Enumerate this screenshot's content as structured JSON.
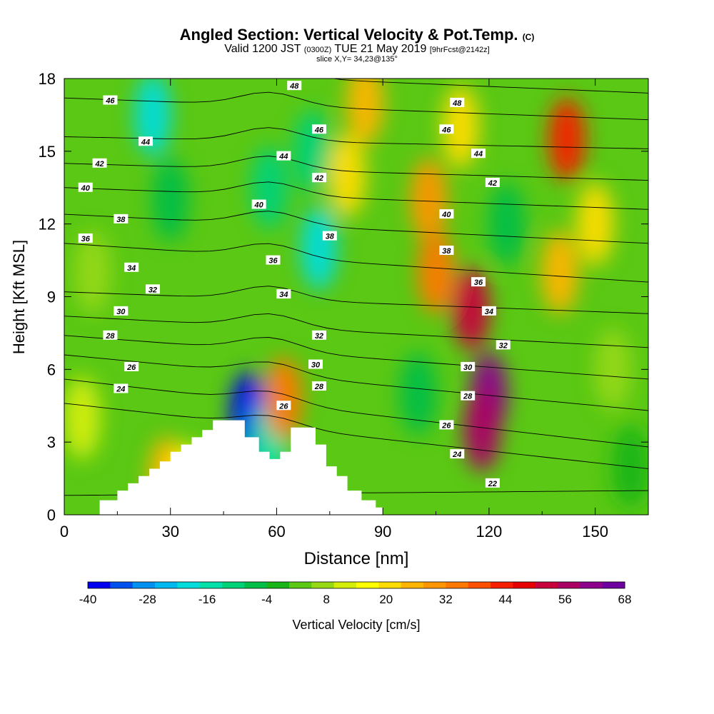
{
  "chart_data": {
    "type": "heatmap",
    "title": "Angled Section: Vertical Velocity & Pot.Temp.",
    "title_mark": "(C)",
    "subtitle_parts": [
      "Valid 1200 JST ",
      "(0300Z)",
      " TUE 21 May 2019 ",
      "[9hrFcst@2142z]"
    ],
    "slice_text": "slice X,Y= 34,23@135°",
    "xlabel": "Distance [nm]",
    "ylabel": "Height [Kft MSL]",
    "xlim": [
      0,
      165
    ],
    "ylim": [
      0,
      18
    ],
    "xticks": [
      "0",
      "30",
      "60",
      "90",
      "120",
      "150"
    ],
    "yticks": [
      "0",
      "3",
      "6",
      "9",
      "12",
      "15",
      "18"
    ],
    "colorbar": {
      "label": "Vertical Velocity [cm/s]",
      "ticks": [
        "-40",
        "-28",
        "-16",
        "-4",
        "8",
        "20",
        "32",
        "44",
        "56",
        "68"
      ],
      "min": -40,
      "max": 68,
      "colors": [
        "#0000f0",
        "#0050f0",
        "#0090f0",
        "#00b8f0",
        "#00dcdc",
        "#00e0a8",
        "#00d278",
        "#00be46",
        "#18b418",
        "#5ac814",
        "#96d814",
        "#d4ee0a",
        "#ffff00",
        "#ffdc00",
        "#ffb400",
        "#ff9600",
        "#ff7800",
        "#ff5000",
        "#f51e00",
        "#e60000",
        "#c8003c",
        "#aa0064",
        "#8c008c",
        "#6e00a0"
      ]
    },
    "velocity_features": [
      {
        "x": 29,
        "z": 1.5,
        "value": 26
      },
      {
        "x": 35,
        "z": 1.2,
        "value": 18
      },
      {
        "x": 52,
        "z": 4.2,
        "value": -38
      },
      {
        "x": 58,
        "z": 3.0,
        "value": -16
      },
      {
        "x": 62,
        "z": 4.8,
        "value": 36
      },
      {
        "x": 25,
        "z": 16.5,
        "value": -20
      },
      {
        "x": 30,
        "z": 13.0,
        "value": -8
      },
      {
        "x": 72,
        "z": 11.0,
        "value": -20
      },
      {
        "x": 70,
        "z": 15.0,
        "value": -12
      },
      {
        "x": 58,
        "z": 13.5,
        "value": -10
      },
      {
        "x": 80,
        "z": 14.0,
        "value": 20
      },
      {
        "x": 85,
        "z": 17.0,
        "value": 24
      },
      {
        "x": 103,
        "z": 13.0,
        "value": 28
      },
      {
        "x": 105,
        "z": 10.0,
        "value": 36
      },
      {
        "x": 115,
        "z": 8.5,
        "value": 52
      },
      {
        "x": 120,
        "z": 5.0,
        "value": 62
      },
      {
        "x": 118,
        "z": 3.5,
        "value": 56
      },
      {
        "x": 112,
        "z": 16.0,
        "value": 22
      },
      {
        "x": 125,
        "z": 12.0,
        "value": -8
      },
      {
        "x": 142,
        "z": 15.5,
        "value": 44
      },
      {
        "x": 140,
        "z": 10.0,
        "value": 24
      },
      {
        "x": 150,
        "z": 12.0,
        "value": 20
      },
      {
        "x": 155,
        "z": 6.0,
        "value": 8
      },
      {
        "x": 160,
        "z": 2.0,
        "value": -4
      },
      {
        "x": 100,
        "z": 5.0,
        "value": -8
      },
      {
        "x": 5,
        "z": 4.0,
        "value": 12
      },
      {
        "x": 8,
        "z": 10.0,
        "value": 6
      }
    ],
    "isentropes": [
      {
        "theta": 22,
        "z_left": 0.8,
        "z_right": 1.0
      },
      {
        "theta": 24,
        "z_left": 4.6,
        "z_right": 1.9
      },
      {
        "theta": 26,
        "z_left": 5.6,
        "z_right": 2.8
      },
      {
        "theta": 28,
        "z_left": 6.6,
        "z_right": 4.3
      },
      {
        "theta": 30,
        "z_left": 7.4,
        "z_right": 5.6
      },
      {
        "theta": 32,
        "z_left": 8.2,
        "z_right": 6.9
      },
      {
        "theta": 34,
        "z_left": 9.2,
        "z_right": 8.3
      },
      {
        "theta": 36,
        "z_left": 11.2,
        "z_right": 9.6
      },
      {
        "theta": 38,
        "z_left": 12.4,
        "z_right": 11.2
      },
      {
        "theta": 40,
        "z_left": 13.5,
        "z_right": 12.6
      },
      {
        "theta": 42,
        "z_left": 14.5,
        "z_right": 13.8
      },
      {
        "theta": 44,
        "z_left": 15.6,
        "z_right": 15.1
      },
      {
        "theta": 46,
        "z_left": 17.2,
        "z_right": 16.3
      },
      {
        "theta": 48,
        "z_left": 18.4,
        "z_right": 17.4
      }
    ],
    "contour_labels": [
      {
        "text": "46",
        "x": 13,
        "z": 17.1
      },
      {
        "text": "44",
        "x": 23,
        "z": 15.4
      },
      {
        "text": "42",
        "x": 10,
        "z": 14.5
      },
      {
        "text": "40",
        "x": 6,
        "z": 13.5
      },
      {
        "text": "38",
        "x": 16,
        "z": 12.2
      },
      {
        "text": "36",
        "x": 6,
        "z": 11.4
      },
      {
        "text": "34",
        "x": 19,
        "z": 10.2
      },
      {
        "text": "32",
        "x": 25,
        "z": 9.3
      },
      {
        "text": "30",
        "x": 16,
        "z": 8.4
      },
      {
        "text": "28",
        "x": 13,
        "z": 7.4
      },
      {
        "text": "26",
        "x": 19,
        "z": 6.1
      },
      {
        "text": "24",
        "x": 16,
        "z": 5.2
      },
      {
        "text": "48",
        "x": 65,
        "z": 17.7
      },
      {
        "text": "46",
        "x": 72,
        "z": 15.9
      },
      {
        "text": "44",
        "x": 62,
        "z": 14.8
      },
      {
        "text": "42",
        "x": 72,
        "z": 13.9
      },
      {
        "text": "40",
        "x": 55,
        "z": 12.8
      },
      {
        "text": "38",
        "x": 75,
        "z": 11.5
      },
      {
        "text": "36",
        "x": 59,
        "z": 10.5
      },
      {
        "text": "34",
        "x": 62,
        "z": 9.1
      },
      {
        "text": "32",
        "x": 72,
        "z": 7.4
      },
      {
        "text": "30",
        "x": 71,
        "z": 6.2
      },
      {
        "text": "28",
        "x": 72,
        "z": 5.3
      },
      {
        "text": "26",
        "x": 62,
        "z": 4.5
      },
      {
        "text": "48",
        "x": 111,
        "z": 17.0
      },
      {
        "text": "46",
        "x": 108,
        "z": 15.9
      },
      {
        "text": "44",
        "x": 117,
        "z": 14.9
      },
      {
        "text": "42",
        "x": 121,
        "z": 13.7
      },
      {
        "text": "40",
        "x": 108,
        "z": 12.4
      },
      {
        "text": "38",
        "x": 108,
        "z": 10.9
      },
      {
        "text": "36",
        "x": 117,
        "z": 9.6
      },
      {
        "text": "34",
        "x": 120,
        "z": 8.4
      },
      {
        "text": "32",
        "x": 124,
        "z": 7.0
      },
      {
        "text": "30",
        "x": 114,
        "z": 6.1
      },
      {
        "text": "28",
        "x": 114,
        "z": 4.9
      },
      {
        "text": "26",
        "x": 108,
        "z": 3.7
      },
      {
        "text": "24",
        "x": 111,
        "z": 2.5
      },
      {
        "text": "22",
        "x": 121,
        "z": 1.3
      }
    ],
    "terrain": [
      [
        10,
        0.6
      ],
      [
        15,
        0.6
      ],
      [
        15,
        1.0
      ],
      [
        18,
        1.0
      ],
      [
        18,
        1.3
      ],
      [
        21,
        1.3
      ],
      [
        21,
        1.6
      ],
      [
        24,
        1.6
      ],
      [
        24,
        1.9
      ],
      [
        27,
        1.9
      ],
      [
        27,
        2.2
      ],
      [
        30,
        2.2
      ],
      [
        30,
        2.6
      ],
      [
        33,
        2.6
      ],
      [
        33,
        2.9
      ],
      [
        36,
        2.9
      ],
      [
        36,
        3.2
      ],
      [
        39,
        3.2
      ],
      [
        39,
        3.5
      ],
      [
        42,
        3.5
      ],
      [
        42,
        3.9
      ],
      [
        51,
        3.9
      ],
      [
        51,
        3.2
      ],
      [
        55,
        3.2
      ],
      [
        55,
        2.6
      ],
      [
        58,
        2.6
      ],
      [
        58,
        2.3
      ],
      [
        61,
        2.3
      ],
      [
        61,
        2.6
      ],
      [
        64,
        2.6
      ],
      [
        64,
        3.6
      ],
      [
        71,
        3.6
      ],
      [
        71,
        2.9
      ],
      [
        74,
        2.9
      ],
      [
        74,
        2.0
      ],
      [
        77,
        2.0
      ],
      [
        77,
        1.6
      ],
      [
        80,
        1.6
      ],
      [
        80,
        1.0
      ],
      [
        84,
        1.0
      ],
      [
        84,
        0.6
      ],
      [
        88,
        0.6
      ],
      [
        88,
        0.3
      ],
      [
        90,
        0.3
      ],
      [
        90,
        0
      ]
    ]
  }
}
